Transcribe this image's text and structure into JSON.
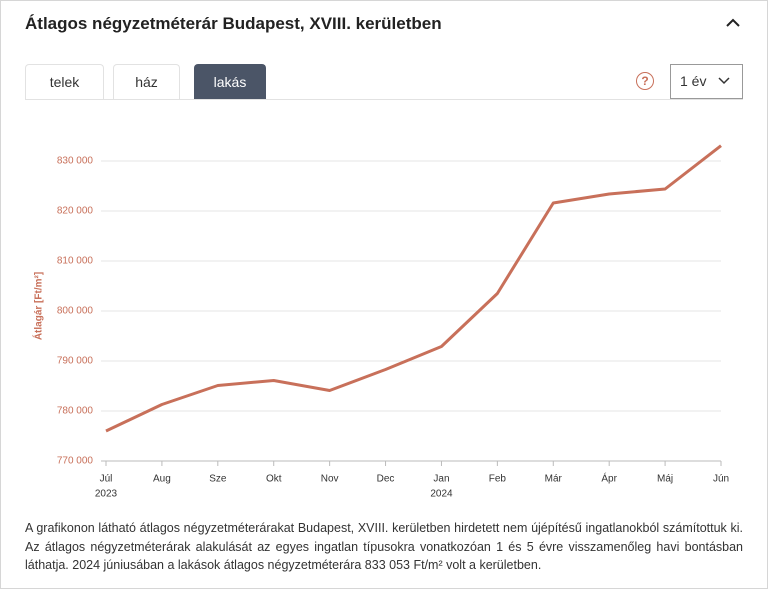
{
  "header": {
    "title": "Átlagos négyzetméterár Budapest, XVIII. kerületben"
  },
  "tabs": [
    "telek",
    "ház",
    "lakás"
  ],
  "active_tab": 2,
  "help_icon": "?",
  "period_select": "1 év",
  "chart_data": {
    "type": "line",
    "y_label": "Átlagár [Ft/m²]",
    "categories": [
      "Júl",
      "Aug",
      "Sze",
      "Okt",
      "Nov",
      "Dec",
      "Jan",
      "Feb",
      "Már",
      "Ápr",
      "Máj",
      "Jún"
    ],
    "category_years": [
      "2023",
      null,
      null,
      null,
      null,
      null,
      "2024",
      null,
      null,
      null,
      null,
      null
    ],
    "series": [
      {
        "name": "lakás",
        "color": "#c8705a",
        "values": [
          776000,
          781300,
          785100,
          786100,
          784100,
          788300,
          792900,
          803500,
          821600,
          823400,
          824400,
          833053
        ]
      }
    ],
    "ylim": [
      770000,
      836000
    ],
    "yticks": [
      {
        "value": 770000,
        "label": "770 000"
      },
      {
        "value": 780000,
        "label": "780 000"
      },
      {
        "value": 790000,
        "label": "790 000"
      },
      {
        "value": 800000,
        "label": "800 000"
      },
      {
        "value": 810000,
        "label": "810 000"
      },
      {
        "value": 820000,
        "label": "820 000"
      },
      {
        "value": 830000,
        "label": "830 000"
      }
    ],
    "grid": true,
    "tick_color": "#c8705a"
  },
  "footnote": "A grafikonon látható átlagos négyzetméterárakat Budapest, XVIII. kerületben hirdetett nem újépítésű ingatlanokból számítottuk ki. Az átlagos négyzetméterárak alakulását az egyes ingatlan típusokra vonatkozóan 1 és 5 évre visszamenőleg havi bontásban láthatja. 2024 júniusában a lakások átlagos négyzetméterára 833 053 Ft/m² volt a kerületben."
}
